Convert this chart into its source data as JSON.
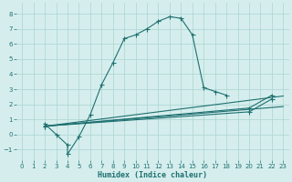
{
  "xlabel": "Humidex (Indice chaleur)",
  "xlim": [
    -0.5,
    23.5
  ],
  "ylim": [
    -1.7,
    8.7
  ],
  "yticks": [
    -1,
    0,
    1,
    2,
    3,
    4,
    5,
    6,
    7,
    8
  ],
  "xticks": [
    0,
    1,
    2,
    3,
    4,
    5,
    6,
    7,
    8,
    9,
    10,
    11,
    12,
    13,
    14,
    15,
    16,
    17,
    18,
    19,
    20,
    21,
    22,
    23
  ],
  "bg_color": "#d5eeed",
  "grid_color": "#b0d8d5",
  "line_color": "#1e7070",
  "series1_x": [
    2,
    3,
    4,
    4,
    5,
    6,
    7,
    8,
    9,
    10,
    11,
    12,
    13,
    14,
    15,
    16,
    17,
    18
  ],
  "series1_y": [
    0.7,
    0.0,
    -0.7,
    -1.3,
    -0.15,
    1.3,
    3.3,
    4.75,
    6.35,
    6.6,
    7.0,
    7.5,
    7.8,
    7.7,
    6.6,
    3.1,
    2.85,
    2.6
  ],
  "series2_x": [
    2,
    23
  ],
  "series2_y": [
    0.55,
    2.55
  ],
  "series3_x": [
    2,
    20,
    22
  ],
  "series3_y": [
    0.55,
    1.75,
    2.6
  ],
  "series4_x": [
    2,
    20,
    22
  ],
  "series4_y": [
    0.55,
    1.5,
    2.35
  ],
  "series5_x": [
    2,
    23
  ],
  "series5_y": [
    0.55,
    1.85
  ]
}
